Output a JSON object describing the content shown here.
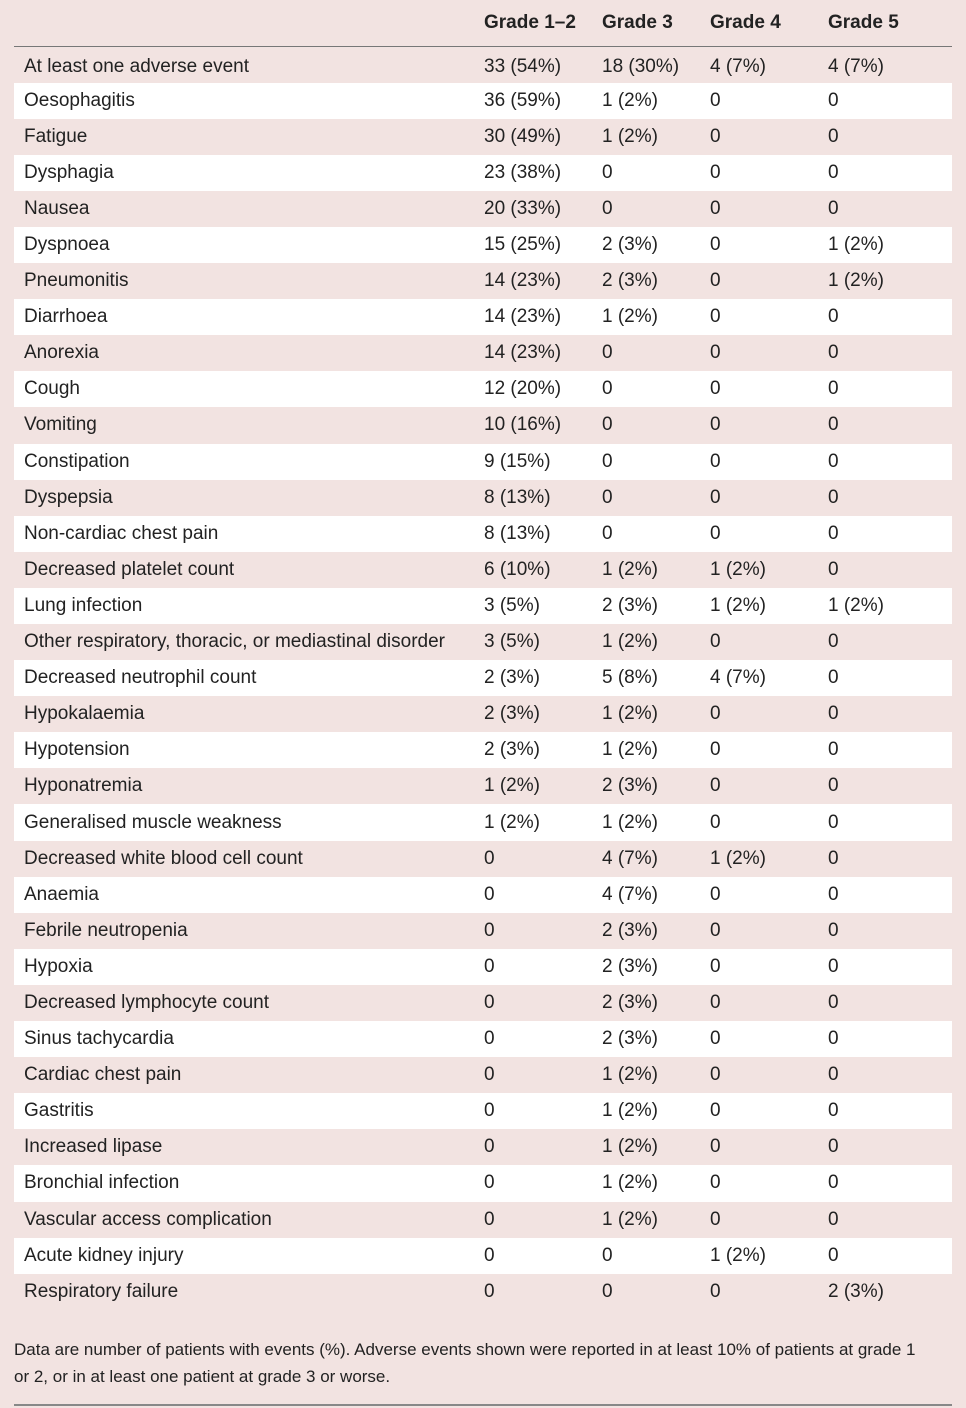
{
  "table": {
    "headers": [
      "",
      "Grade 1–2",
      "Grade 3",
      "Grade 4",
      "Grade 5"
    ],
    "rows": [
      {
        "label": "At least one adverse event",
        "g12": "33 (54%)",
        "g3": "18 (30%)",
        "g4": "4 (7%)",
        "g5": "4 (7%)"
      },
      {
        "label": "Oesophagitis",
        "g12": "36 (59%)",
        "g3": "1 (2%)",
        "g4": "0",
        "g5": "0"
      },
      {
        "label": "Fatigue",
        "g12": "30 (49%)",
        "g3": "1 (2%)",
        "g4": "0",
        "g5": "0"
      },
      {
        "label": "Dysphagia",
        "g12": "23 (38%)",
        "g3": "0",
        "g4": "0",
        "g5": "0"
      },
      {
        "label": "Nausea",
        "g12": "20 (33%)",
        "g3": "0",
        "g4": "0",
        "g5": "0"
      },
      {
        "label": "Dyspnoea",
        "g12": "15 (25%)",
        "g3": "2 (3%)",
        "g4": "0",
        "g5": "1 (2%)"
      },
      {
        "label": "Pneumonitis",
        "g12": "14 (23%)",
        "g3": "2 (3%)",
        "g4": "0",
        "g5": "1 (2%)"
      },
      {
        "label": "Diarrhoea",
        "g12": "14 (23%)",
        "g3": "1 (2%)",
        "g4": "0",
        "g5": "0"
      },
      {
        "label": "Anorexia",
        "g12": "14 (23%)",
        "g3": "0",
        "g4": "0",
        "g5": "0"
      },
      {
        "label": "Cough",
        "g12": "12 (20%)",
        "g3": "0",
        "g4": "0",
        "g5": "0"
      },
      {
        "label": "Vomiting",
        "g12": "10 (16%)",
        "g3": "0",
        "g4": "0",
        "g5": "0"
      },
      {
        "label": "Constipation",
        "g12": "9 (15%)",
        "g3": "0",
        "g4": "0",
        "g5": "0"
      },
      {
        "label": "Dyspepsia",
        "g12": "8 (13%)",
        "g3": "0",
        "g4": "0",
        "g5": "0"
      },
      {
        "label": "Non-cardiac chest pain",
        "g12": "8 (13%)",
        "g3": "0",
        "g4": "0",
        "g5": "0"
      },
      {
        "label": "Decreased platelet count",
        "g12": "6 (10%)",
        "g3": "1 (2%)",
        "g4": "1 (2%)",
        "g5": "0"
      },
      {
        "label": "Lung infection",
        "g12": "3 (5%)",
        "g3": "2 (3%)",
        "g4": "1 (2%)",
        "g5": "1 (2%)"
      },
      {
        "label": "Other respiratory, thoracic, or mediastinal disorder",
        "g12": "3 (5%)",
        "g3": "1 (2%)",
        "g4": "0",
        "g5": "0"
      },
      {
        "label": "Decreased neutrophil count",
        "g12": "2 (3%)",
        "g3": "5 (8%)",
        "g4": "4 (7%)",
        "g5": "0"
      },
      {
        "label": "Hypokalaemia",
        "g12": "2 (3%)",
        "g3": "1 (2%)",
        "g4": "0",
        "g5": "0"
      },
      {
        "label": "Hypotension",
        "g12": "2 (3%)",
        "g3": "1 (2%)",
        "g4": "0",
        "g5": "0"
      },
      {
        "label": "Hyponatremia",
        "g12": "1 (2%)",
        "g3": "2 (3%)",
        "g4": "0",
        "g5": "0"
      },
      {
        "label": "Generalised muscle weakness",
        "g12": "1 (2%)",
        "g3": "1 (2%)",
        "g4": "0",
        "g5": "0"
      },
      {
        "label": "Decreased white blood cell count",
        "g12": "0",
        "g3": "4 (7%)",
        "g4": "1 (2%)",
        "g5": "0"
      },
      {
        "label": "Anaemia",
        "g12": "0",
        "g3": "4 (7%)",
        "g4": "0",
        "g5": "0"
      },
      {
        "label": "Febrile neutropenia",
        "g12": "0",
        "g3": "2 (3%)",
        "g4": "0",
        "g5": "0"
      },
      {
        "label": "Hypoxia",
        "g12": "0",
        "g3": "2 (3%)",
        "g4": "0",
        "g5": "0"
      },
      {
        "label": "Decreased lymphocyte count",
        "g12": "0",
        "g3": "2 (3%)",
        "g4": "0",
        "g5": "0"
      },
      {
        "label": "Sinus tachycardia",
        "g12": "0",
        "g3": "2 (3%)",
        "g4": "0",
        "g5": "0"
      },
      {
        "label": "Cardiac chest pain",
        "g12": "0",
        "g3": "1 (2%)",
        "g4": "0",
        "g5": "0"
      },
      {
        "label": "Gastritis",
        "g12": "0",
        "g3": "1 (2%)",
        "g4": "0",
        "g5": "0"
      },
      {
        "label": "Increased lipase",
        "g12": "0",
        "g3": "1 (2%)",
        "g4": "0",
        "g5": "0"
      },
      {
        "label": "Bronchial infection",
        "g12": "0",
        "g3": "1 (2%)",
        "g4": "0",
        "g5": "0"
      },
      {
        "label": "Vascular access complication",
        "g12": "0",
        "g3": "1 (2%)",
        "g4": "0",
        "g5": "0"
      },
      {
        "label": "Acute kidney injury",
        "g12": "0",
        "g3": "0",
        "g4": "1 (2%)",
        "g5": "0"
      },
      {
        "label": "Respiratory failure",
        "g12": "0",
        "g3": "0",
        "g4": "0",
        "g5": "2 (3%)"
      }
    ]
  },
  "footnote": "Data are number of patients with events (%). Adverse events shown were reported in at least 10% of patients at grade 1 or 2, or in at least one patient at grade 3 or worse.",
  "colors": {
    "background": "#f2e3e1",
    "stripe": "#ffffff",
    "rule": "#777777"
  }
}
